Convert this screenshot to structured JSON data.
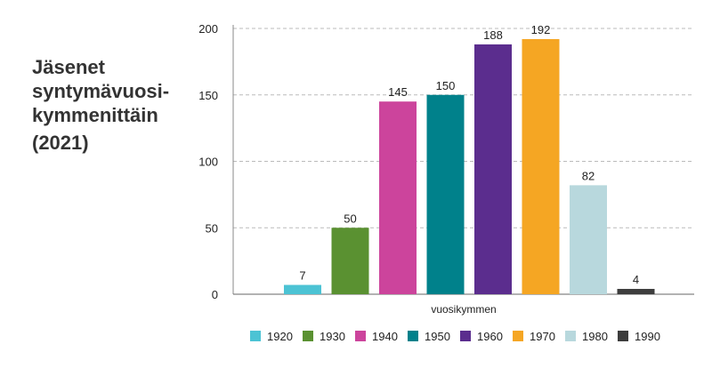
{
  "chart_data": {
    "type": "bar",
    "title": "Jäsenet syntymävuosi-kymmenittäin",
    "subtitle": "(2021)",
    "xlabel": "vuosikymmen",
    "ylabel": "",
    "ylim": [
      0,
      200
    ],
    "yticks": [
      0,
      50,
      100,
      150,
      200
    ],
    "grid": true,
    "legend_position": "bottom",
    "categories": [
      "1920",
      "1930",
      "1940",
      "1950",
      "1960",
      "1970",
      "1980",
      "1990"
    ],
    "values": [
      7,
      50,
      145,
      150,
      188,
      192,
      82,
      4
    ],
    "colors": [
      "#4cc3d4",
      "#5a9131",
      "#cc449c",
      "#00818b",
      "#5b2d8e",
      "#f5a623",
      "#b8d8dd",
      "#3d3d3d"
    ]
  }
}
